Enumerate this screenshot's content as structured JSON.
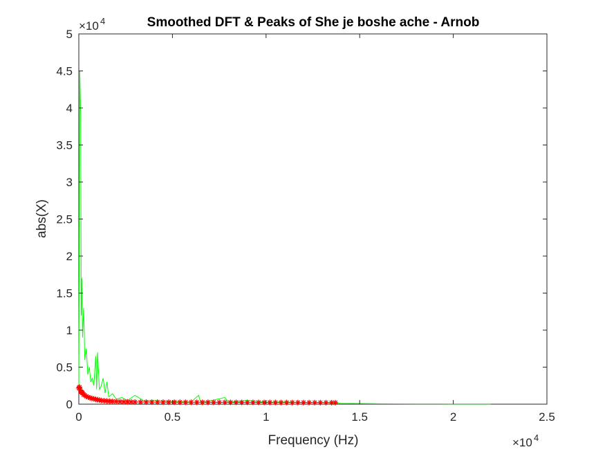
{
  "chart_data": {
    "type": "line",
    "title": "Smoothed DFT & Peaks of She je boshe ache - Arnob",
    "xlabel": "Frequency (Hz)",
    "ylabel": "abs(X)",
    "x_exponent_label": "×10",
    "x_exponent_power": "4",
    "y_exponent_label": "×10",
    "y_exponent_power": "4",
    "x_scale": 10000,
    "y_scale": 10000,
    "xlim": [
      0,
      25000
    ],
    "ylim": [
      0,
      50000
    ],
    "x_ticks": [
      0,
      5000,
      10000,
      15000,
      20000,
      25000
    ],
    "x_tick_labels": [
      "0",
      "0.5",
      "1",
      "1.5",
      "2",
      "2.5"
    ],
    "y_ticks": [
      0,
      5000,
      10000,
      15000,
      20000,
      25000,
      30000,
      35000,
      40000,
      45000,
      50000
    ],
    "y_tick_labels": [
      "0",
      "0.5",
      "1",
      "1.5",
      "2",
      "2.5",
      "3",
      "3.5",
      "4",
      "4.5",
      "5"
    ],
    "grid": false,
    "colors": {
      "spectrum": "#00ff00",
      "peaks": "#ff0000",
      "axes": "#262626"
    },
    "series": [
      {
        "type": "line",
        "color": "#00ff00",
        "x": [
          0,
          50,
          100,
          130,
          160,
          200,
          260,
          320,
          400,
          480,
          560,
          640,
          720,
          800,
          900,
          950,
          1000,
          1100,
          1200,
          1300,
          1400,
          1500,
          1600,
          1800,
          2000,
          2300,
          2600,
          3000,
          3500,
          4000,
          5000,
          6000,
          6400,
          6500,
          7000,
          7800,
          8000,
          9000,
          10000,
          11000,
          12000,
          13000,
          14000,
          16000,
          18000,
          20000,
          22000
        ],
        "y": [
          2000,
          45000,
          39000,
          12000,
          17000,
          9000,
          13000,
          6000,
          7500,
          4000,
          5000,
          3000,
          3500,
          2500,
          6500,
          2000,
          7000,
          2000,
          2500,
          3500,
          1500,
          3000,
          1000,
          1400,
          700,
          900,
          500,
          1200,
          400,
          500,
          350,
          300,
          1200,
          300,
          450,
          900,
          250,
          500,
          250,
          300,
          200,
          200,
          100,
          60,
          40,
          30,
          20
        ]
      },
      {
        "type": "scatter",
        "marker": "*",
        "color": "#ff0000",
        "x": [
          0,
          40,
          80,
          120,
          160,
          200,
          260,
          320,
          400,
          500,
          600,
          700,
          800,
          900,
          1000,
          1100,
          1200,
          1350,
          1500,
          1650,
          1800,
          2000,
          2200,
          2400,
          2600,
          2800,
          3000,
          3300,
          3600,
          3900,
          4200,
          4500,
          4800,
          5100,
          5400,
          5700,
          6000,
          6300,
          6600,
          6900,
          7200,
          7500,
          7800,
          8100,
          8400,
          8700,
          9000,
          9300,
          9600,
          9900,
          10200,
          10500,
          10800,
          11100,
          11400,
          11700,
          12000,
          12300,
          12600,
          12900,
          13200,
          13500,
          13700
        ],
        "y": [
          2200,
          2300,
          1900,
          1700,
          1600,
          1500,
          1300,
          1200,
          1050,
          950,
          850,
          780,
          720,
          650,
          600,
          550,
          500,
          460,
          430,
          400,
          380,
          360,
          340,
          320,
          310,
          300,
          290,
          285,
          280,
          275,
          270,
          268,
          265,
          262,
          260,
          258,
          256,
          254,
          252,
          250,
          248,
          246,
          244,
          242,
          240,
          238,
          236,
          234,
          232,
          230,
          228,
          226,
          224,
          222,
          220,
          218,
          216,
          214,
          212,
          210,
          208,
          206,
          204
        ]
      }
    ]
  }
}
